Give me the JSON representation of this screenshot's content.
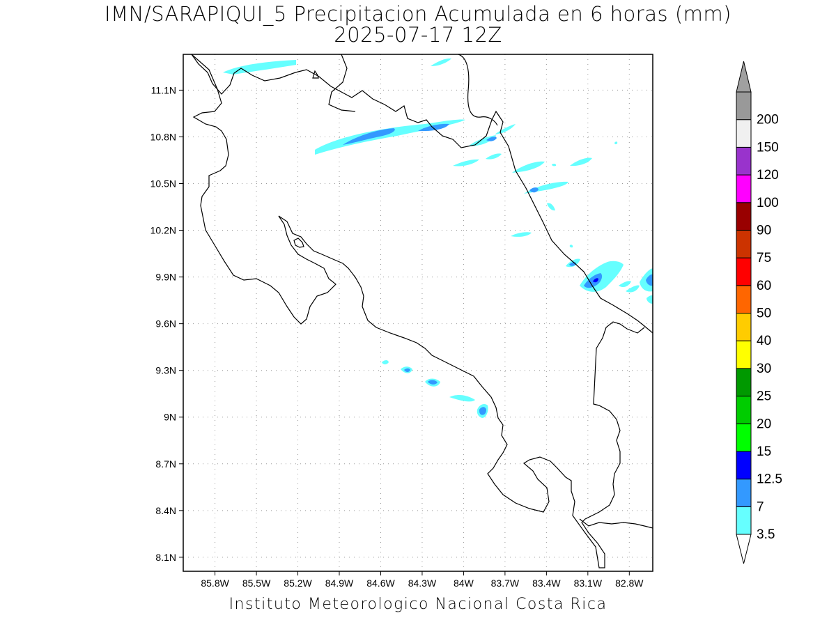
{
  "title": {
    "line1": "IMN/SARAPIQUI_5 Precipitacion Acumulada en 6 horas (mm)",
    "line2": "2025-07-17 12Z"
  },
  "footer": "Instituto Meteorologico Nacional Costa Rica",
  "map": {
    "lon_range": [
      -86.03,
      -82.63
    ],
    "lat_range": [
      8.01,
      11.33
    ],
    "lon_ticks": [
      "85.8W",
      "85.5W",
      "85.2W",
      "84.9W",
      "84.6W",
      "84.3W",
      "84W",
      "83.7W",
      "83.4W",
      "83.1W",
      "82.8W"
    ],
    "lat_ticks": [
      "11.1N",
      "10.8N",
      "10.5N",
      "10.2N",
      "9.9N",
      "9.6N",
      "9.3N",
      "9N",
      "8.7N",
      "8.4N",
      "8.1N"
    ],
    "grid": "dotted",
    "colorbar": {
      "placement": "right",
      "labels": [
        "3.5",
        "7",
        "12.5",
        "15",
        "20",
        "25",
        "30",
        "40",
        "50",
        "60",
        "75",
        "90",
        "100",
        "120",
        "150",
        "200"
      ],
      "colors": [
        "#66ffff",
        "#3399ff",
        "#0000ff",
        "#00ff00",
        "#00cc00",
        "#009900",
        "#ffff00",
        "#ffcc00",
        "#ff6600",
        "#ff0000",
        "#cc3300",
        "#990000",
        "#ff00ff",
        "#9933cc",
        "#f0f0f0",
        "#999999"
      ],
      "lower_arrow": "#ffffff",
      "upper_arrow": "#a0a0a0"
    },
    "precip_colors": {
      "light": "#66ffff",
      "medium": "#3399ff",
      "heavy": "#0000ff"
    }
  }
}
